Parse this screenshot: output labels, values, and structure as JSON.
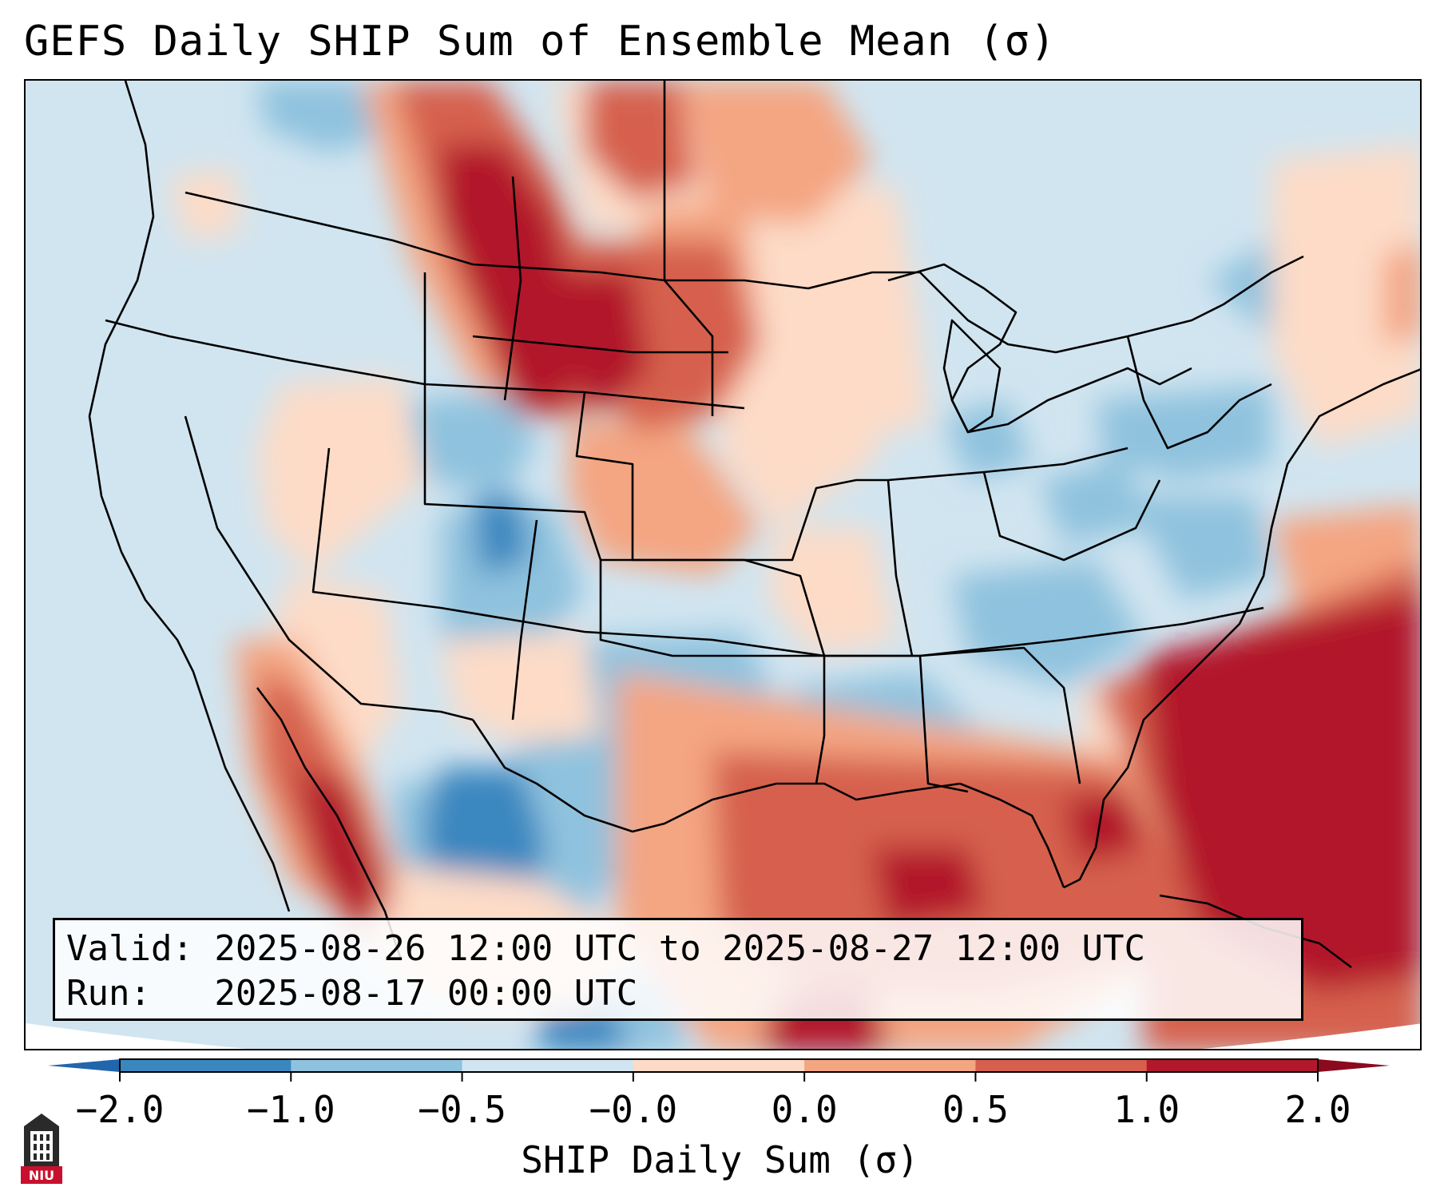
{
  "title": "GEFS Daily SHIP Sum of Ensemble Mean (σ)",
  "info": {
    "valid_line": "Valid: 2025-08-26 12:00 UTC to 2025-08-27 12:00 UTC",
    "run_line": "Run:   2025-08-17 00:00 UTC"
  },
  "colorbar": {
    "label": "SHIP Daily Sum (σ)",
    "ticks": [
      "−2.0",
      "−1.0",
      "−0.5",
      "−0.0",
      "0.0",
      "0.5",
      "1.0",
      "2.0"
    ],
    "colors": [
      "#3a87c0",
      "#8fc2de",
      "#d1e5f0",
      "#fddbc7",
      "#f4a582",
      "#d6604d",
      "#b2182b"
    ],
    "under_color": "#2166ac",
    "over_color": "#8b0a1e",
    "background_color": "#d1e5f0"
  },
  "logo": {
    "text": "NIU",
    "color": "#c8102e"
  }
}
